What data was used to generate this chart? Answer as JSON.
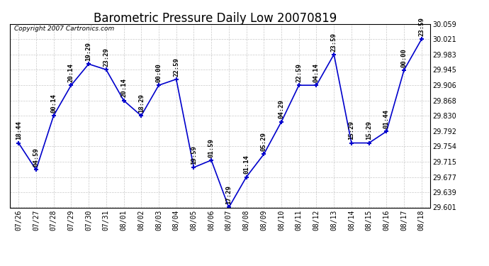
{
  "title": "Barometric Pressure Daily Low 20070819",
  "copyright": "Copyright 2007 Cartronics.com",
  "dates": [
    "07/26",
    "07/27",
    "07/28",
    "07/29",
    "07/30",
    "07/31",
    "08/01",
    "08/02",
    "08/03",
    "08/04",
    "08/05",
    "08/06",
    "08/07",
    "08/08",
    "08/09",
    "08/10",
    "08/11",
    "08/12",
    "08/13",
    "08/14",
    "08/15",
    "08/16",
    "08/17",
    "08/18"
  ],
  "values": [
    29.762,
    29.695,
    29.83,
    29.906,
    29.959,
    29.945,
    29.868,
    29.83,
    29.906,
    29.921,
    29.701,
    29.719,
    29.601,
    29.677,
    29.734,
    29.815,
    29.906,
    29.906,
    29.983,
    29.762,
    29.762,
    29.791,
    29.944,
    30.021
  ],
  "time_labels": [
    "18:44",
    "04:59",
    "00:14",
    "20:14",
    "19:29",
    "23:29",
    "20:14",
    "18:29",
    "00:00",
    "22:59",
    "19:59",
    "01:59",
    "17:29",
    "01:14",
    "05:29",
    "04:29",
    "22:59",
    "04:14",
    "23:59",
    "15:29",
    "15:29",
    "01:44",
    "00:00",
    "23:59"
  ],
  "ylim": [
    29.601,
    30.059
  ],
  "yticks": [
    29.601,
    29.639,
    29.677,
    29.715,
    29.754,
    29.792,
    29.83,
    29.868,
    29.906,
    29.945,
    29.983,
    30.021,
    30.059
  ],
  "line_color": "#0000cc",
  "background_color": "#ffffff",
  "grid_color": "#bbbbbb",
  "title_fontsize": 12,
  "tick_fontsize": 7,
  "label_fontsize": 6.5
}
